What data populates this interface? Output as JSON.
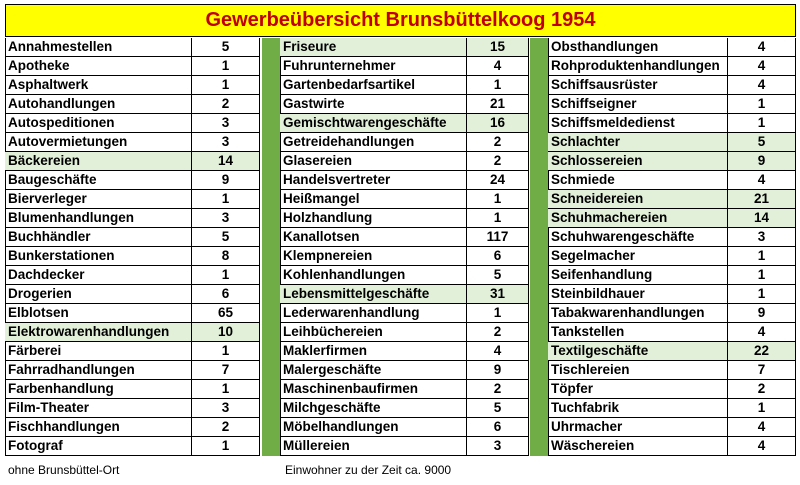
{
  "title": "Gewerbeübersicht Brunsbüttelkoog 1954",
  "columns": [
    {
      "rows": [
        {
          "name": "Annahmestellen",
          "count": "5",
          "highlight": false
        },
        {
          "name": "Apotheke",
          "count": "1",
          "highlight": false
        },
        {
          "name": "Asphaltwerk",
          "count": "1",
          "highlight": false
        },
        {
          "name": "Autohandlungen",
          "count": "2",
          "highlight": false
        },
        {
          "name": "Autospeditionen",
          "count": "3",
          "highlight": false
        },
        {
          "name": "Autovermietungen",
          "count": "3",
          "highlight": false
        },
        {
          "name": "Bäckereien",
          "count": "14",
          "highlight": true
        },
        {
          "name": "Baugeschäfte",
          "count": "9",
          "highlight": false
        },
        {
          "name": "Bierverleger",
          "count": "1",
          "highlight": false
        },
        {
          "name": "Blumenhandlungen",
          "count": "3",
          "highlight": false
        },
        {
          "name": "Buchhändler",
          "count": "5",
          "highlight": false
        },
        {
          "name": "Bunkerstationen",
          "count": "8",
          "highlight": false
        },
        {
          "name": "Dachdecker",
          "count": "1",
          "highlight": false
        },
        {
          "name": "Drogerien",
          "count": "6",
          "highlight": false
        },
        {
          "name": "Elblotsen",
          "count": "65",
          "highlight": false
        },
        {
          "name": "Elektrowarenhandlungen",
          "count": "10",
          "highlight": true
        },
        {
          "name": "Färberei",
          "count": "1",
          "highlight": false
        },
        {
          "name": "Fahrradhandlungen",
          "count": "7",
          "highlight": false
        },
        {
          "name": "Farbenhandlung",
          "count": "1",
          "highlight": false
        },
        {
          "name": "Film-Theater",
          "count": "3",
          "highlight": false
        },
        {
          "name": "Fischhandlungen",
          "count": "2",
          "highlight": false
        },
        {
          "name": "Fotograf",
          "count": "1",
          "highlight": false
        }
      ]
    },
    {
      "rows": [
        {
          "name": "Friseure",
          "count": "15",
          "highlight": true
        },
        {
          "name": "Fuhrunternehmer",
          "count": "4",
          "highlight": false
        },
        {
          "name": "Gartenbedarfsartikel",
          "count": "1",
          "highlight": false
        },
        {
          "name": "Gastwirte",
          "count": "21",
          "highlight": false
        },
        {
          "name": "Gemischtwarengeschäfte",
          "count": "16",
          "highlight": true
        },
        {
          "name": "Getreidehandlungen",
          "count": "2",
          "highlight": false
        },
        {
          "name": "Glasereien",
          "count": "2",
          "highlight": false
        },
        {
          "name": "Handelsvertreter",
          "count": "24",
          "highlight": false
        },
        {
          "name": "Heißmangel",
          "count": "1",
          "highlight": false
        },
        {
          "name": "Holzhandlung",
          "count": "1",
          "highlight": false
        },
        {
          "name": "Kanallotsen",
          "count": "117",
          "highlight": false
        },
        {
          "name": "Klempnereien",
          "count": "6",
          "highlight": false
        },
        {
          "name": "Kohlenhandlungen",
          "count": "5",
          "highlight": false
        },
        {
          "name": "Lebensmittelgeschäfte",
          "count": "31",
          "highlight": true
        },
        {
          "name": "Lederwarenhandlung",
          "count": "1",
          "highlight": false
        },
        {
          "name": "Leihbüchereien",
          "count": "2",
          "highlight": false
        },
        {
          "name": "Maklerfirmen",
          "count": "4",
          "highlight": false
        },
        {
          "name": "Malergeschäfte",
          "count": "9",
          "highlight": false
        },
        {
          "name": "Maschinenbaufirmen",
          "count": "2",
          "highlight": false
        },
        {
          "name": "Milchgeschäfte",
          "count": "5",
          "highlight": false
        },
        {
          "name": "Möbelhandlungen",
          "count": "6",
          "highlight": false
        },
        {
          "name": "Müllereien",
          "count": "3",
          "highlight": false
        }
      ]
    },
    {
      "rows": [
        {
          "name": "Obsthandlungen",
          "count": "4",
          "highlight": false
        },
        {
          "name": "Rohproduktenhandlungen",
          "count": "4",
          "highlight": false
        },
        {
          "name": "Schiffsausrüster",
          "count": "4",
          "highlight": false
        },
        {
          "name": "Schiffseigner",
          "count": "1",
          "highlight": false
        },
        {
          "name": "Schiffsmeldedienst",
          "count": "1",
          "highlight": false
        },
        {
          "name": "Schlachter",
          "count": "5",
          "highlight": true
        },
        {
          "name": "Schlossereien",
          "count": "9",
          "highlight": true
        },
        {
          "name": "Schmiede",
          "count": "4",
          "highlight": false
        },
        {
          "name": "Schneidereien",
          "count": "21",
          "highlight": true
        },
        {
          "name": "Schuhmachereien",
          "count": "14",
          "highlight": true
        },
        {
          "name": "Schuhwarengeschäfte",
          "count": "3",
          "highlight": false
        },
        {
          "name": "Segelmacher",
          "count": "1",
          "highlight": false
        },
        {
          "name": "Seifenhandlung",
          "count": "1",
          "highlight": false
        },
        {
          "name": "Steinbildhauer",
          "count": "1",
          "highlight": false
        },
        {
          "name": "Tabakwarenhandlungen",
          "count": "9",
          "highlight": false
        },
        {
          "name": "Tankstellen",
          "count": "4",
          "highlight": false
        },
        {
          "name": "Textilgeschäfte",
          "count": "22",
          "highlight": true
        },
        {
          "name": "Tischlereien",
          "count": "7",
          "highlight": false
        },
        {
          "name": "Töpfer",
          "count": "2",
          "highlight": false
        },
        {
          "name": "Tuchfabrik",
          "count": "1",
          "highlight": false
        },
        {
          "name": "Uhrmacher",
          "count": "4",
          "highlight": false
        },
        {
          "name": "Wäschereien",
          "count": "4",
          "highlight": false
        }
      ]
    }
  ],
  "footer": {
    "left": "ohne Brunsbüttel-Ort",
    "right": "Einwohner zu der Zeit ca. 9000"
  },
  "colors": {
    "title_background": "#ffff00",
    "title_text": "#c00000",
    "highlight_row": "#e2f0d9",
    "separator": "#70ad47"
  }
}
